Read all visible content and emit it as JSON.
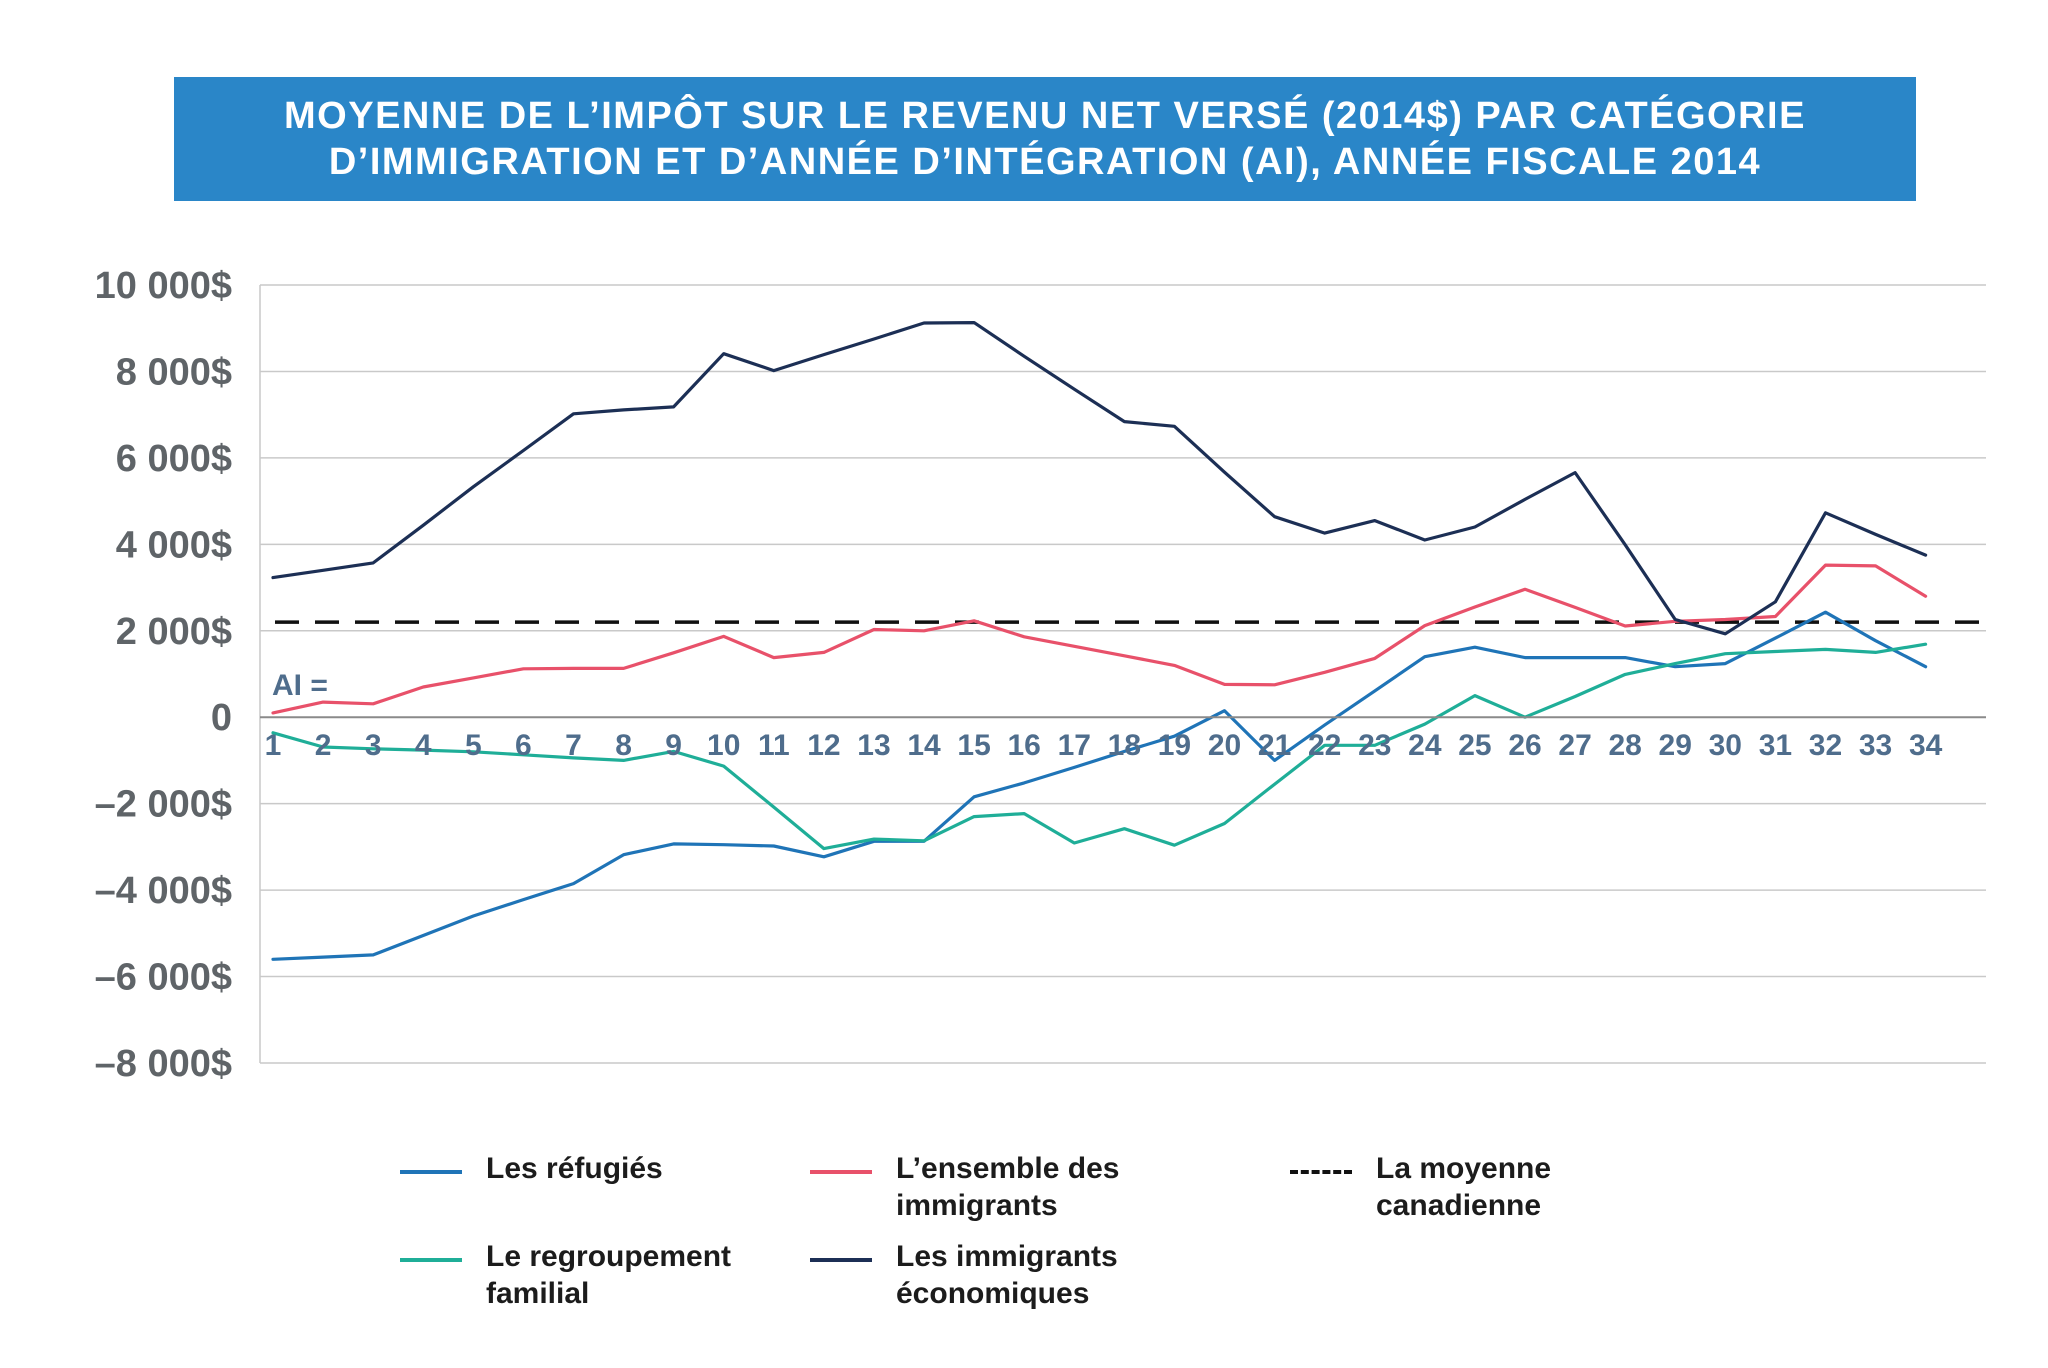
{
  "title": {
    "line1": "MOYENNE DE L’IMPÔT SUR LE REVENU NET VERSÉ (2014$) PAR CATÉGORIE",
    "line2": "D’IMMIGRATION ET D’ANNÉE D’INTÉGRATION (AI), ANNÉE FISCALE 2014"
  },
  "colors": {
    "banner": "#2a86c8",
    "refugies": "#1f74b7",
    "ensemble": "#e8516a",
    "regroupement": "#1fae98",
    "economiques": "#1c2f55",
    "moyenne": "#111111"
  },
  "legend": {
    "refugies": {
      "line1": "Les réfugiés",
      "line2": ""
    },
    "ensemble": {
      "line1": "L’ensemble des",
      "line2": "immigrants"
    },
    "moyenne": {
      "line1": "La moyenne",
      "line2": "canadienne"
    },
    "regroupement": {
      "line1": "Le regroupement",
      "line2": "familial"
    },
    "economiques": {
      "line1": "Les immigrants",
      "line2": "économiques"
    }
  },
  "chart_data": {
    "type": "line",
    "title": "MOYENNE DE L’IMPÔT SUR LE REVENU NET VERSÉ (2014$) PAR CATÉGORIE D’IMMIGRATION ET D’ANNÉE D’INTÉGRATION (AI), ANNÉE FISCALE 2014",
    "x_axis_prefix": "AI =",
    "x": [
      1,
      2,
      3,
      4,
      5,
      6,
      7,
      8,
      9,
      10,
      11,
      12,
      13,
      14,
      15,
      16,
      17,
      18,
      19,
      20,
      21,
      22,
      23,
      24,
      25,
      26,
      27,
      28,
      29,
      30,
      31,
      32,
      33,
      34
    ],
    "ylim": [
      -8000,
      10000
    ],
    "yticks": [
      10000,
      8000,
      6000,
      4000,
      2000,
      0,
      -2000,
      -4000,
      -6000,
      -8000
    ],
    "ytick_labels": [
      "10 000$",
      "8 000$",
      "6 000$",
      "4 000$",
      "2 000$",
      "0",
      "–2 000$",
      "–4 000$",
      "–6 000$",
      "–8 000$"
    ],
    "grid": true,
    "legend_position": "bottom",
    "reference_line": {
      "key": "moyenne",
      "name": "La moyenne canadienne",
      "value": 2200,
      "style": "dashed"
    },
    "series": [
      {
        "key": "refugies",
        "name": "Les réfugiés",
        "values": [
          -5600,
          -5550,
          -5500,
          -5050,
          -4600,
          -4220,
          -3850,
          -3180,
          -2930,
          -2950,
          -2980,
          -3230,
          -2870,
          -2870,
          -1840,
          -1520,
          -1160,
          -790,
          -440,
          150,
          -1000,
          -180,
          610,
          1400,
          1620,
          1380,
          1380,
          1380,
          1170,
          1240,
          1830,
          2430,
          1770,
          1170
        ]
      },
      {
        "key": "regroupement",
        "name": "Le regroupement familial",
        "values": [
          -360,
          -690,
          -730,
          -760,
          -800,
          -870,
          -940,
          -1000,
          -790,
          -1130,
          -2080,
          -3040,
          -2820,
          -2860,
          -2300,
          -2230,
          -2910,
          -2580,
          -2960,
          -2460,
          -1550,
          -650,
          -650,
          -160,
          500,
          0,
          480,
          990,
          1240,
          1470,
          1520,
          1570,
          1500,
          1690
        ]
      },
      {
        "key": "ensemble",
        "name": "L’ensemble des immigrants",
        "values": [
          100,
          350,
          310,
          700,
          910,
          1120,
          1130,
          1130,
          1490,
          1870,
          1380,
          1500,
          2030,
          2000,
          2230,
          1860,
          1640,
          1420,
          1200,
          760,
          750,
          1040,
          1360,
          2120,
          2550,
          2960,
          2540,
          2110,
          2220,
          2260,
          2330,
          3520,
          3500,
          2800
        ]
      },
      {
        "key": "economiques",
        "name": "Les immigrants économiques",
        "values": [
          3230,
          3400,
          3570,
          4440,
          5330,
          6170,
          7020,
          7110,
          7180,
          8410,
          8020,
          8390,
          8750,
          9120,
          9130,
          8350,
          7590,
          6840,
          6730,
          5670,
          4640,
          4260,
          4550,
          4100,
          4400,
          5040,
          5660,
          3990,
          2260,
          1930,
          2670,
          4730,
          4230,
          3750
        ]
      }
    ]
  }
}
